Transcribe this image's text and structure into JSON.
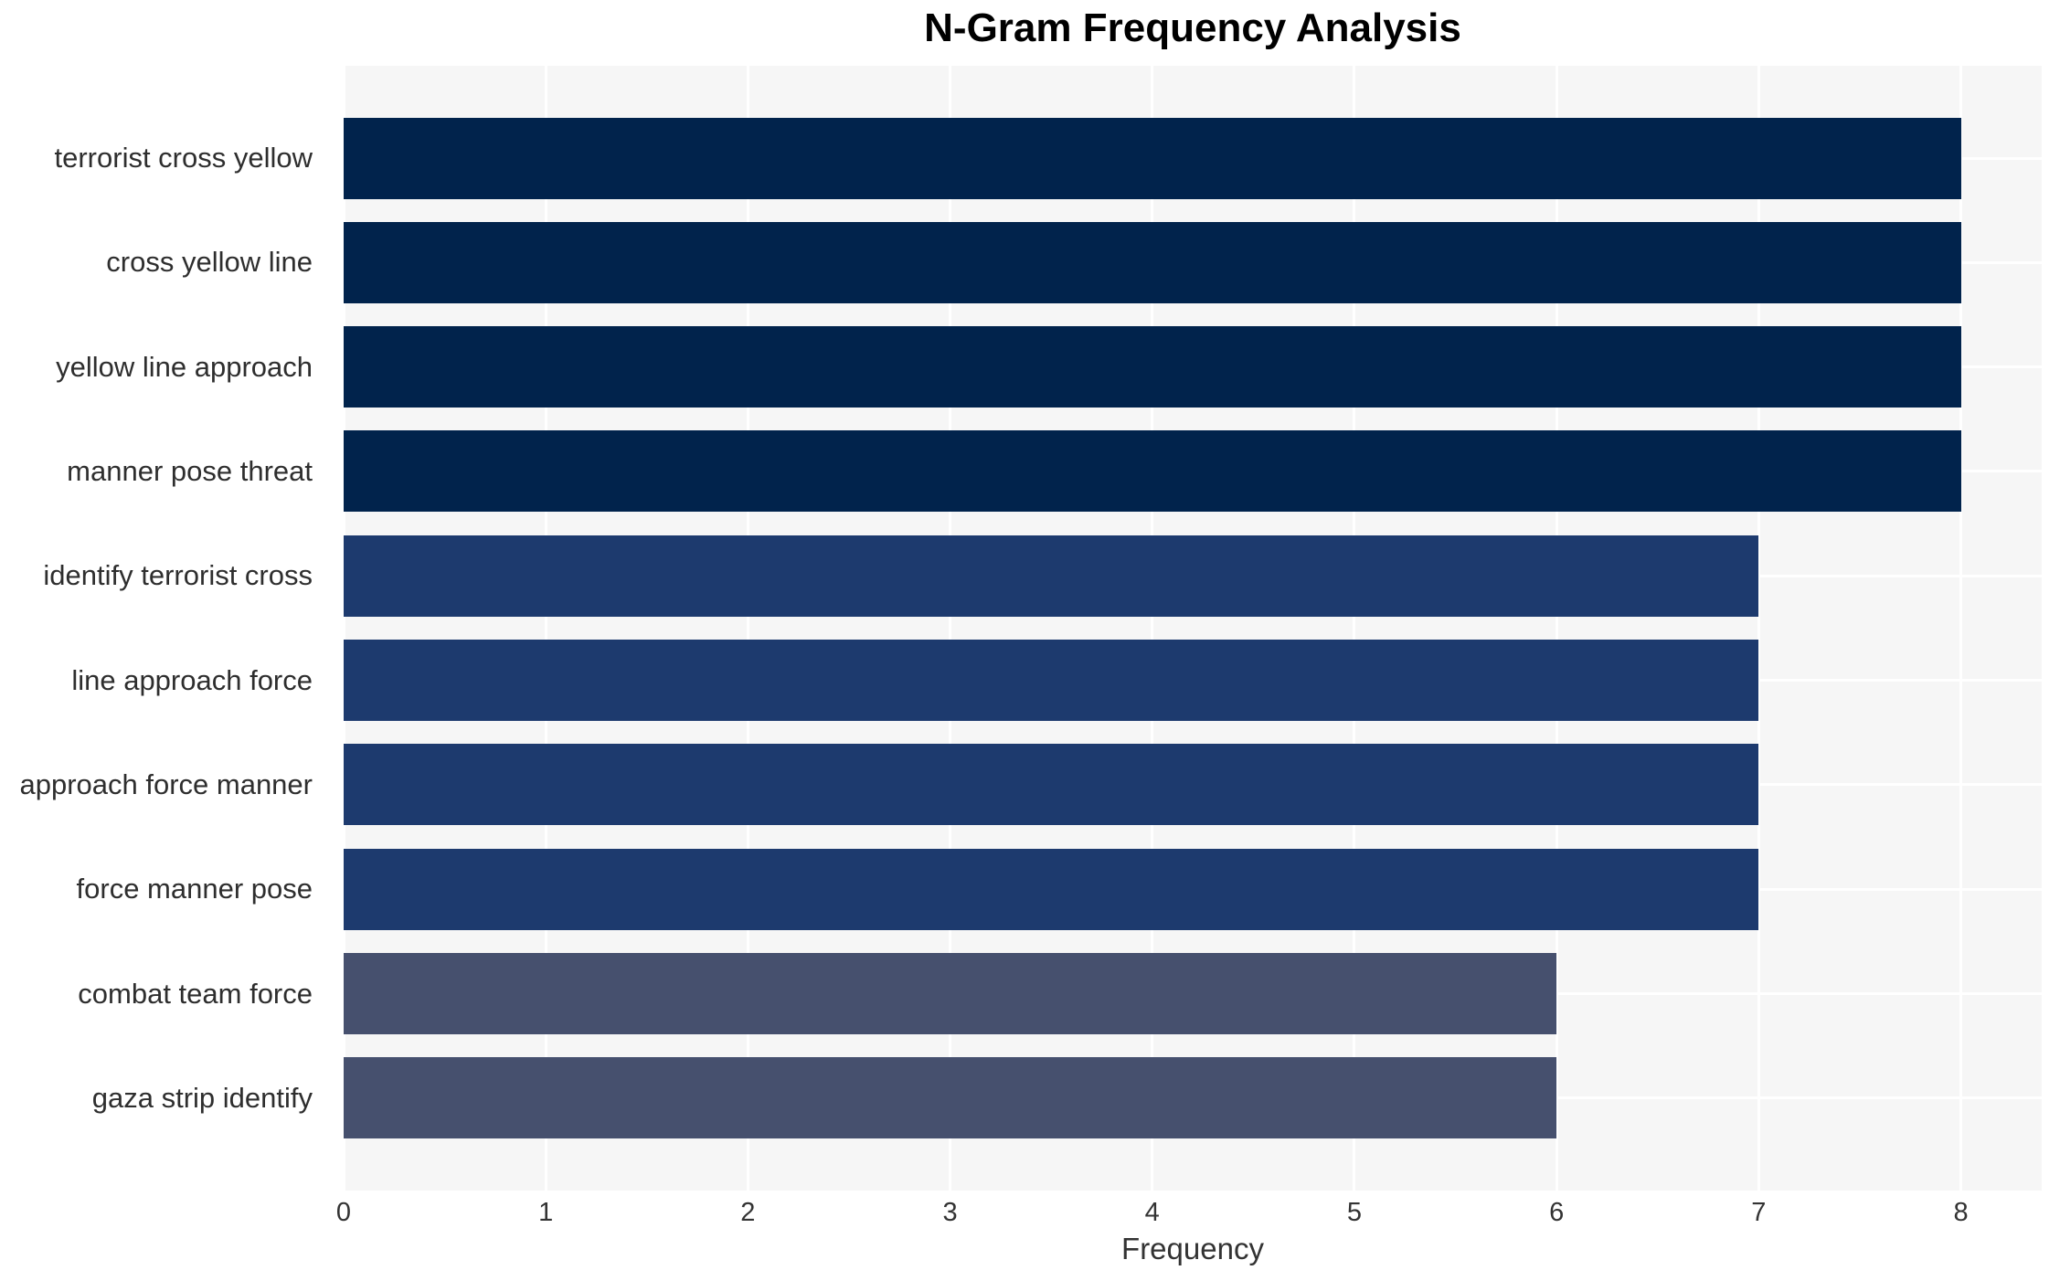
{
  "chart_data": {
    "type": "bar",
    "orientation": "horizontal",
    "title": "N-Gram Frequency Analysis",
    "xlabel": "Frequency",
    "ylabel": "",
    "categories": [
      "terrorist cross yellow",
      "cross yellow line",
      "yellow line approach",
      "manner pose threat",
      "identify terrorist cross",
      "line approach force",
      "approach force manner",
      "force manner pose",
      "combat team force",
      "gaza strip identify"
    ],
    "values": [
      8,
      8,
      8,
      8,
      7,
      7,
      7,
      7,
      6,
      6
    ],
    "bar_colors": [
      "#01234c",
      "#01234c",
      "#01234c",
      "#01234c",
      "#1d3a6e",
      "#1d3a6e",
      "#1d3a6e",
      "#1d3a6e",
      "#46506e",
      "#46506e"
    ],
    "xticks": [
      "0",
      "1",
      "2",
      "3",
      "4",
      "5",
      "6",
      "7",
      "8"
    ],
    "xlim": [
      0,
      8.4
    ],
    "grid": true,
    "legend": false,
    "plot_background": "#f6f6f6",
    "grid_color": "#ffffff",
    "text_color": "#333333"
  }
}
